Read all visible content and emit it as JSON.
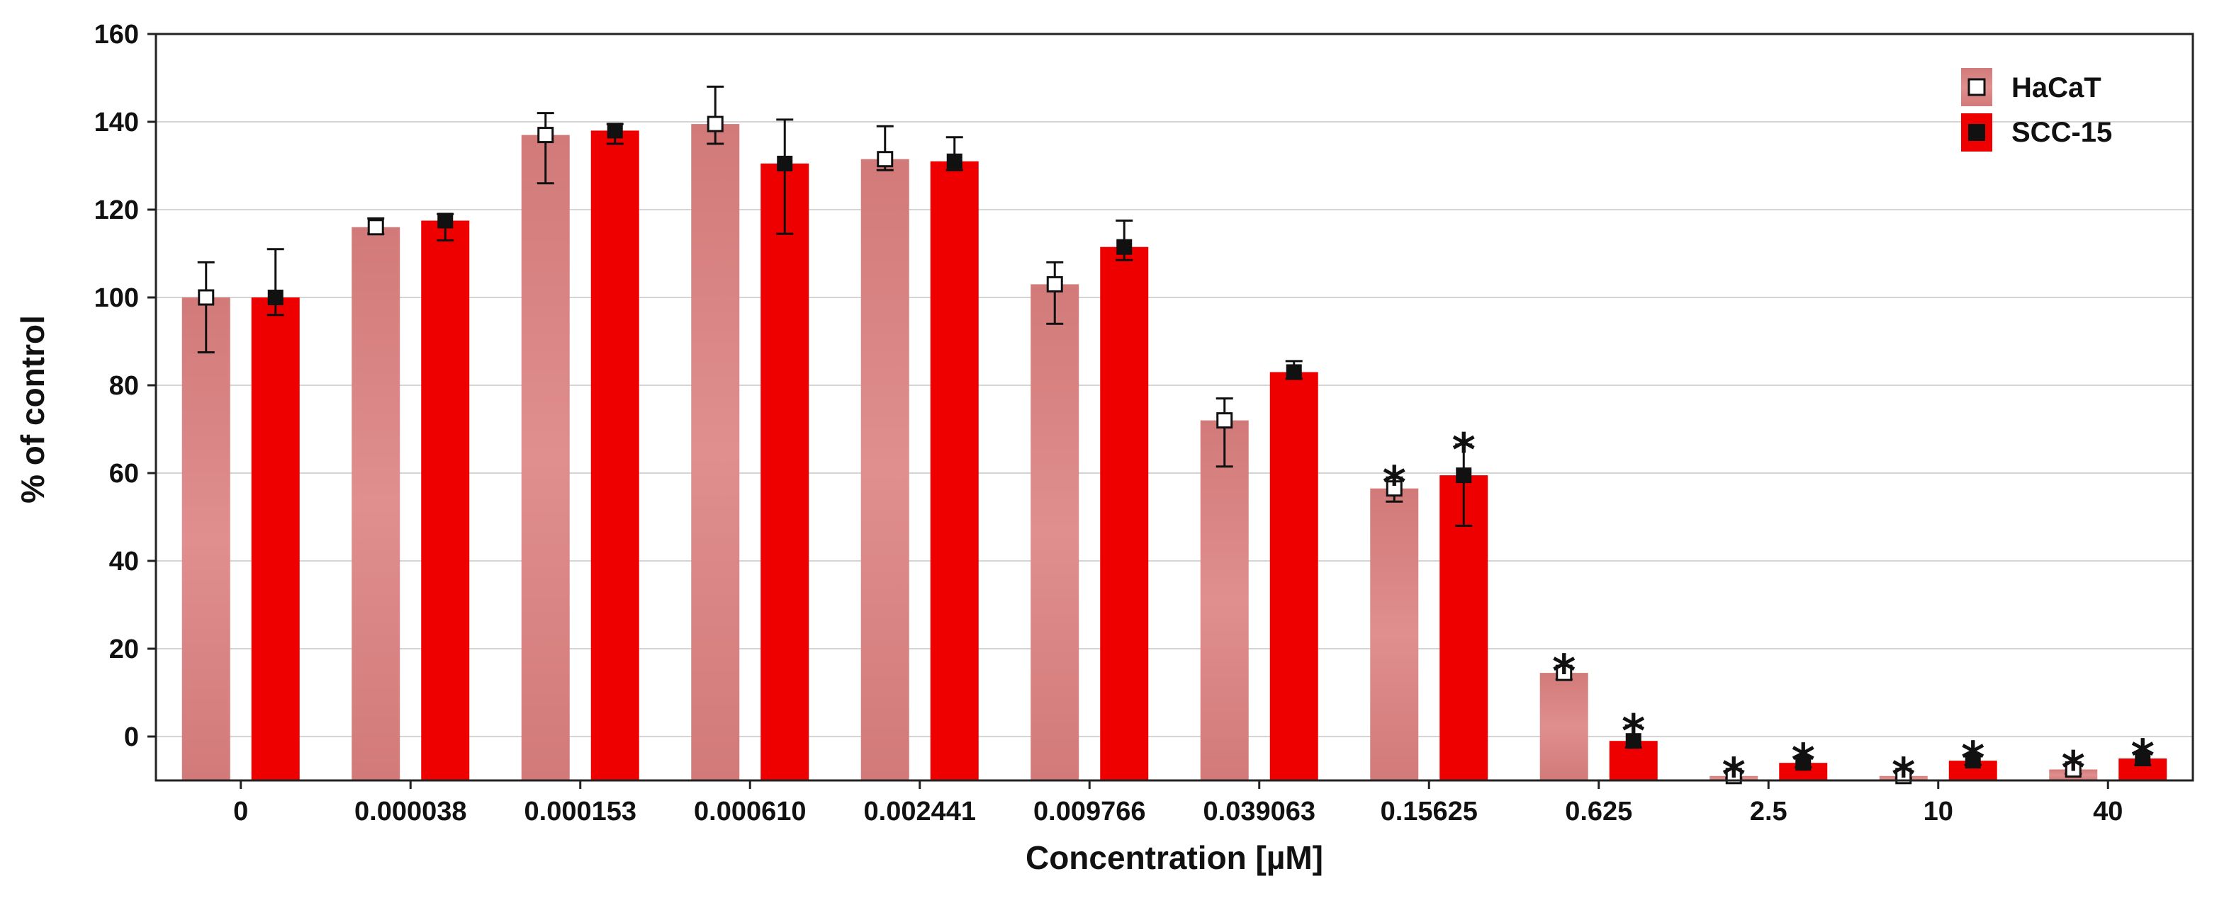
{
  "chart_data": {
    "type": "bar",
    "title": "",
    "xlabel": "Concentration [µM]",
    "ylabel": "% of control",
    "ylim": [
      -10,
      160
    ],
    "yticks": [
      0,
      20,
      40,
      60,
      80,
      100,
      120,
      140,
      160
    ],
    "grid": true,
    "legend_position": "top-right",
    "categories": [
      "0",
      "0.000038",
      "0.000153",
      "0.000610",
      "0.002441",
      "0.009766",
      "0.039063",
      "0.15625",
      "0.625",
      "2.5",
      "10",
      "40"
    ],
    "series": [
      {
        "name": "HaCaT",
        "color": "#d98080",
        "marker": "open-square",
        "values": [
          100,
          116,
          137,
          139.5,
          131.5,
          103,
          72,
          56.5,
          14.5,
          -9,
          -9,
          -7.5
        ],
        "err_low": [
          12.5,
          1.5,
          11,
          4.5,
          2.5,
          9,
          10.5,
          3,
          1.5,
          0.5,
          0.5,
          1
        ],
        "err_high": [
          8,
          2,
          5,
          8.5,
          7.5,
          5,
          5,
          2.5,
          1.5,
          0.5,
          0.5,
          1
        ],
        "significant": [
          false,
          false,
          false,
          false,
          false,
          false,
          false,
          true,
          true,
          true,
          true,
          true
        ]
      },
      {
        "name": "SCC-15",
        "color": "#ee0000",
        "marker": "filled-square",
        "values": [
          100,
          117.5,
          138,
          130.5,
          131,
          111.5,
          83,
          59.5,
          -1,
          -6,
          -5.5,
          -5
        ],
        "err_low": [
          4,
          4.5,
          3,
          16,
          2,
          3,
          1.5,
          11.5,
          1.5,
          1,
          1,
          1.5
        ],
        "err_high": [
          11,
          1.5,
          1.5,
          10,
          5.5,
          6,
          2.5,
          7,
          3.5,
          1,
          1,
          1.5
        ],
        "significant": [
          false,
          false,
          false,
          false,
          false,
          false,
          false,
          true,
          true,
          true,
          true,
          true
        ]
      }
    ],
    "annotation_symbol": "*"
  }
}
